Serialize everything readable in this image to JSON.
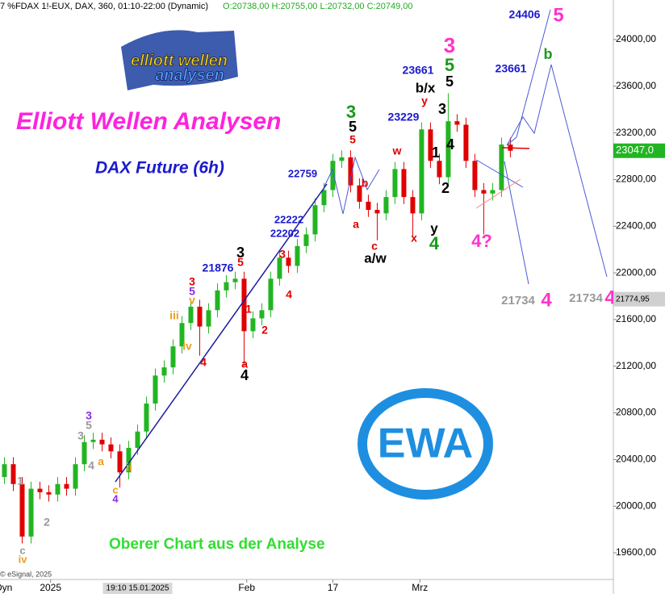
{
  "header": {
    "symbol": "7 %FDAX 1!-EUX, DAX, 360, 01:10-22:00 (Dynamic)",
    "ohlc": "O:20738,00 H:20755,00 L:20732,00 C:20749,00",
    "mode": "Dyn",
    "copyright": "© eSignal, 2025"
  },
  "title": "Elliott Wellen Analysen",
  "subtitle": "DAX Future (6h)",
  "footnote": "Oberer Chart aus der Analyse",
  "logo": {
    "top": "elliott wellen",
    "bottom": "analysen",
    "badge": "EWA"
  },
  "chart_data": {
    "type": "candlestick",
    "up_color": "#22b522",
    "down_color": "#e00000",
    "open": [
      20250,
      20360,
      20190,
      19740,
      20150,
      20120,
      20100,
      20190,
      20150,
      20360,
      20550,
      20570,
      20530,
      20470,
      20290,
      20500,
      20640,
      20880,
      21120,
      21190,
      21370,
      21570,
      21710,
      21540,
      21680,
      21850,
      21920,
      21950,
      21500,
      21610,
      21680,
      21950,
      22130,
      22060,
      22230,
      22330,
      22580,
      22710,
      22960,
      22990,
      22750,
      22610,
      22540,
      22510,
      22650,
      22890,
      22650,
      22510,
      23230,
      22960,
      22820,
      23300,
      23270,
      22960,
      22710,
      22680,
      22710,
      23100
    ],
    "high": [
      20420,
      20420,
      20250,
      20210,
      20210,
      20180,
      20250,
      20250,
      20420,
      20610,
      20630,
      20630,
      20590,
      20530,
      20560,
      20700,
      20940,
      21180,
      21250,
      21430,
      21630,
      21770,
      21770,
      21740,
      21910,
      21980,
      22010,
      22010,
      21670,
      21740,
      22010,
      22190,
      22190,
      22290,
      22390,
      22640,
      22770,
      23020,
      23050,
      23050,
      22810,
      22670,
      22600,
      22710,
      22950,
      22950,
      22710,
      23290,
      23290,
      23020,
      23540,
      23360,
      23330,
      23020,
      22770,
      22770,
      23160,
      23160
    ],
    "low": [
      20190,
      20130,
      19680,
      19680,
      20060,
      20040,
      20040,
      20090,
      20090,
      20300,
      20490,
      20470,
      20410,
      20160,
      20230,
      20440,
      20580,
      20820,
      21060,
      21130,
      21310,
      21510,
      21290,
      21480,
      21620,
      21790,
      21860,
      21200,
      21440,
      21550,
      21620,
      21890,
      22000,
      22000,
      22170,
      22270,
      22520,
      22650,
      22900,
      22690,
      22550,
      22480,
      22280,
      22450,
      22590,
      22590,
      22310,
      22450,
      22900,
      22760,
      22760,
      23210,
      22900,
      22650,
      22330,
      22620,
      22650,
      22990
    ],
    "close": [
      20360,
      20190,
      19740,
      20150,
      20120,
      20100,
      20190,
      20150,
      20360,
      20550,
      20570,
      20530,
      20470,
      20290,
      20500,
      20640,
      20880,
      21120,
      21190,
      21370,
      21570,
      21710,
      21540,
      21680,
      21850,
      21920,
      21950,
      21500,
      21610,
      21680,
      21950,
      22130,
      22060,
      22230,
      22330,
      22580,
      22710,
      22960,
      22990,
      22750,
      22610,
      22540,
      22510,
      22650,
      22890,
      22650,
      22510,
      23230,
      22960,
      22820,
      23300,
      23270,
      22960,
      22710,
      22680,
      22710,
      23100,
      23047
    ],
    "xlim": [
      -0.5,
      68.6
    ],
    "ylim": [
      19372,
      24339
    ],
    "xticks": [
      {
        "value": 5.2,
        "label": "2025"
      },
      {
        "value": 27.3,
        "label": "Feb"
      },
      {
        "value": 37,
        "label": "17"
      },
      {
        "value": 46.8,
        "label": "Mrz"
      }
    ],
    "crosshair": {
      "value": 15,
      "label": "19:10 15.01.2025"
    },
    "yticks": [
      {
        "value": 19600,
        "label": "19600,00"
      },
      {
        "value": 20000,
        "label": "20000,00"
      },
      {
        "value": 20400,
        "label": "20400,00"
      },
      {
        "value": 20800,
        "label": "20800,00"
      },
      {
        "value": 21200,
        "label": "21200,00"
      },
      {
        "value": 21600,
        "label": "21600,00"
      },
      {
        "value": 22000,
        "label": "22000,00"
      },
      {
        "value": 22400,
        "label": "22400,00"
      },
      {
        "value": 22800,
        "label": "22800,00"
      },
      {
        "value": 23200,
        "label": "23200,00"
      },
      {
        "value": 23600,
        "label": "23600,00"
      },
      {
        "value": 24000,
        "label": "24000,00"
      }
    ],
    "last_price": {
      "value": 23047,
      "label": "23047,0",
      "color": "#22b522"
    },
    "marker_price": {
      "value": 21774.95,
      "label": "21774,95",
      "color": "#d0d0d0"
    },
    "annotations": [
      {
        "text": "1",
        "color": "#999999"
      },
      {
        "text": "2",
        "color": "#999999"
      },
      {
        "text": "c",
        "color": "#999999"
      },
      {
        "text": "iv",
        "color": "#e8a020"
      },
      {
        "text": "3",
        "color": "#999999"
      },
      {
        "text": "4",
        "color": "#999999"
      },
      {
        "text": "3",
        "color": "#8a2be2"
      },
      {
        "text": "5",
        "color": "#999999"
      },
      {
        "text": "a",
        "color": "#e8a020"
      },
      {
        "text": "ii",
        "color": "#e8a020"
      },
      {
        "text": "c",
        "color": "#e8a020"
      },
      {
        "text": "4",
        "color": "#8a2be2"
      },
      {
        "text": "iii",
        "color": "#e8a020"
      },
      {
        "text": "iv",
        "color": "#e8a020"
      },
      {
        "text": "v",
        "color": "#e8a020"
      },
      {
        "text": "5",
        "color": "#8a2be2"
      },
      {
        "text": "3",
        "color": "#e00000"
      },
      {
        "text": "4",
        "color": "#e00000"
      },
      {
        "text": "21876",
        "color": "#1a1ad0"
      },
      {
        "text": "3",
        "color": "#000000"
      },
      {
        "text": "5",
        "color": "#e00000"
      },
      {
        "text": "1",
        "color": "#e00000"
      },
      {
        "text": "2",
        "color": "#e00000"
      },
      {
        "text": "a",
        "color": "#e00000"
      },
      {
        "text": "4",
        "color": "#000000"
      },
      {
        "text": "3",
        "color": "#e00000"
      },
      {
        "text": "4",
        "color": "#e00000"
      },
      {
        "text": "22222",
        "color": "#1a1ad0"
      },
      {
        "text": "22202",
        "color": "#1a1ad0"
      },
      {
        "text": "22759",
        "color": "#1a1ad0"
      },
      {
        "text": "3",
        "color": "#1a9a1a"
      },
      {
        "text": "5",
        "color": "#000000"
      },
      {
        "text": "5",
        "color": "#e00000"
      },
      {
        "text": "b",
        "color": "#e00000"
      },
      {
        "text": "a",
        "color": "#e00000"
      },
      {
        "text": "c",
        "color": "#e00000"
      },
      {
        "text": "a/w",
        "color": "#000000"
      },
      {
        "text": "w",
        "color": "#e00000"
      },
      {
        "text": "x",
        "color": "#e00000"
      },
      {
        "text": "23229",
        "color": "#1a1ad0"
      },
      {
        "text": "23661",
        "color": "#1a1ad0"
      },
      {
        "text": "b/x",
        "color": "#000000"
      },
      {
        "text": "y",
        "color": "#e00000"
      },
      {
        "text": "1",
        "color": "#000000"
      },
      {
        "text": "2",
        "color": "#000000"
      },
      {
        "text": "y",
        "color": "#000000"
      },
      {
        "text": "4",
        "color": "#1a9a1a"
      },
      {
        "text": "3",
        "color": "#ff33cc"
      },
      {
        "text": "5",
        "color": "#1a9a1a"
      },
      {
        "text": "5",
        "color": "#000000"
      },
      {
        "text": "3",
        "color": "#000000"
      },
      {
        "text": "4",
        "color": "#000000"
      },
      {
        "text": "4?",
        "color": "#ff33cc"
      },
      {
        "text": "23661",
        "color": "#1a1ad0"
      },
      {
        "text": "24406",
        "color": "#1a1ad0"
      },
      {
        "text": "5",
        "color": "#ff33cc"
      },
      {
        "text": "b",
        "color": "#1a9a1a"
      },
      {
        "text": "21734",
        "color": "#999999"
      },
      {
        "text": "4",
        "color": "#ff33cc"
      },
      {
        "text": "21734",
        "color": "#999999"
      },
      {
        "text": "4",
        "color": "#ff33cc"
      }
    ]
  }
}
